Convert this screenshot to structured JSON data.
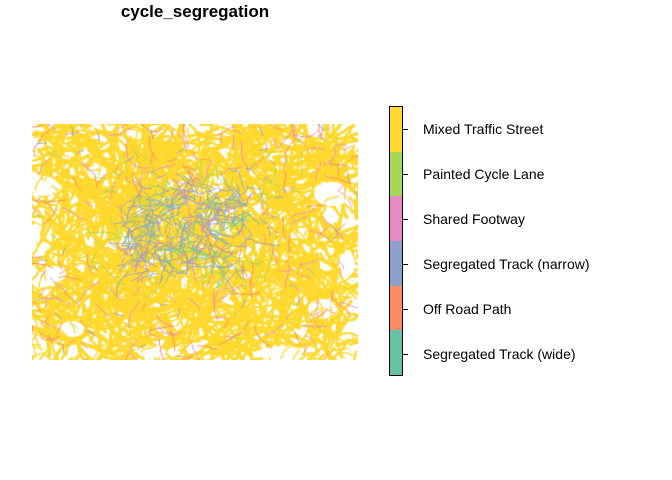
{
  "title": "cycle_segregation",
  "legend": {
    "items": [
      {
        "label": "Mixed Traffic Street",
        "color": "#FFD92F"
      },
      {
        "label": "Painted Cycle Lane",
        "color": "#A6D854"
      },
      {
        "label": "Shared Footway",
        "color": "#E78AC3"
      },
      {
        "label": "Segregated Track (narrow)",
        "color": "#8DA0CB"
      },
      {
        "label": "Off Road Path",
        "color": "#FC8D62"
      },
      {
        "label": "Segregated Track (wide)",
        "color": "#66C2A5"
      }
    ]
  },
  "map": {
    "description_free": true,
    "dominant_category": "Mixed Traffic Street"
  }
}
